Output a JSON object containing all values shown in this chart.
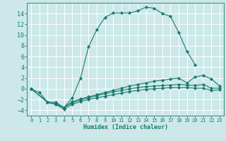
{
  "xlabel": "Humidex (Indice chaleur)",
  "background_color": "#cce8e8",
  "grid_color": "#ffffff",
  "line_color": "#1a7a6e",
  "xlim": [
    -0.5,
    23.5
  ],
  "ylim": [
    -5,
    16
  ],
  "xticks": [
    0,
    1,
    2,
    3,
    4,
    5,
    6,
    7,
    8,
    9,
    10,
    11,
    12,
    13,
    14,
    15,
    16,
    17,
    18,
    19,
    20,
    21,
    22,
    23
  ],
  "yticks": [
    -4,
    -2,
    0,
    2,
    4,
    6,
    8,
    10,
    12,
    14
  ],
  "curves": [
    {
      "x": [
        0,
        1,
        2,
        3,
        4,
        5,
        6,
        7,
        8,
        9,
        10,
        11,
        12,
        13,
        14,
        15,
        16,
        17,
        18,
        19,
        20
      ],
      "y": [
        0,
        -0.7,
        -2.5,
        -2.5,
        -3.5,
        -1.7,
        1.9,
        7.8,
        11.0,
        13.3,
        14.1,
        14.1,
        14.1,
        14.5,
        15.2,
        15.0,
        14.0,
        13.5,
        10.5,
        7.0,
        4.5
      ]
    },
    {
      "x": [
        0,
        2,
        3,
        4,
        5,
        6,
        7,
        8,
        9,
        10,
        11,
        12,
        13,
        14,
        15,
        16,
        17,
        18,
        19,
        20,
        21,
        22,
        23
      ],
      "y": [
        0,
        -2.5,
        -2.8,
        -3.5,
        -2.4,
        -1.9,
        -1.5,
        -1.1,
        -0.7,
        -0.3,
        0.1,
        0.5,
        0.8,
        1.1,
        1.4,
        1.6,
        1.8,
        2.0,
        1.1,
        2.2,
        2.5,
        1.8,
        0.5
      ]
    },
    {
      "x": [
        0,
        2,
        3,
        4,
        5,
        6,
        7,
        8,
        9,
        10,
        11,
        12,
        13,
        14,
        15,
        16,
        17,
        18,
        19,
        20,
        21,
        22,
        23
      ],
      "y": [
        0,
        -2.5,
        -2.9,
        -3.5,
        -2.6,
        -2.1,
        -1.7,
        -1.3,
        -0.9,
        -0.6,
        -0.3,
        0.0,
        0.2,
        0.4,
        0.5,
        0.6,
        0.7,
        0.8,
        0.7,
        0.6,
        0.8,
        0.1,
        0.1
      ]
    },
    {
      "x": [
        0,
        2,
        3,
        4,
        5,
        6,
        7,
        8,
        9,
        10,
        11,
        12,
        13,
        14,
        15,
        16,
        17,
        18,
        19,
        20,
        21,
        22,
        23
      ],
      "y": [
        0,
        -2.5,
        -2.9,
        -3.8,
        -2.9,
        -2.4,
        -2.0,
        -1.7,
        -1.4,
        -1.1,
        -0.8,
        -0.5,
        -0.3,
        -0.1,
        0.0,
        0.1,
        0.2,
        0.2,
        0.2,
        0.1,
        0.1,
        -0.3,
        -0.2
      ]
    }
  ]
}
